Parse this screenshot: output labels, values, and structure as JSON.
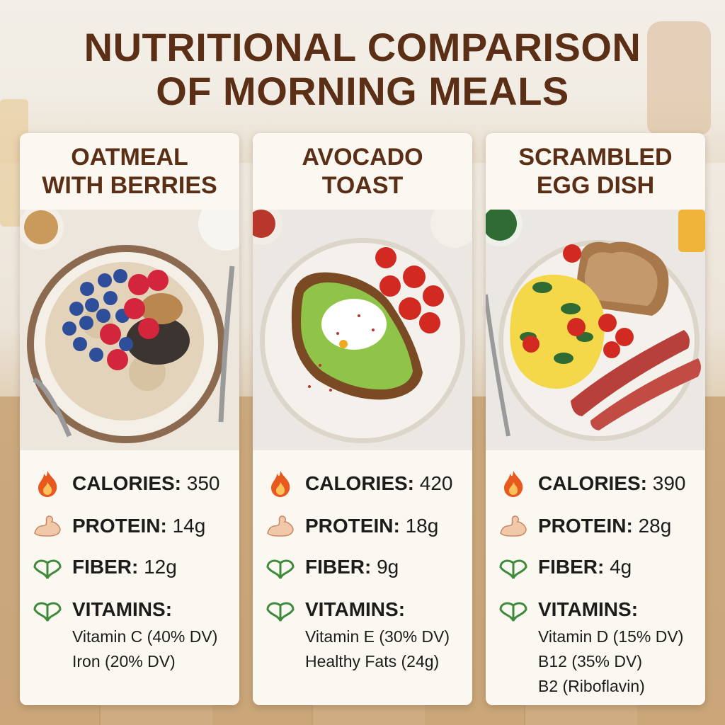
{
  "title": {
    "line1": "NUTRITIONAL COMPARISON",
    "line2": "OF MORNING MEALS"
  },
  "colors": {
    "title": "#5a2f16",
    "card_bg": "#fbf8f2",
    "flame": "#e8591f",
    "leaf": "#3f8a3a",
    "muscle": "#f1c9a8"
  },
  "icons": {
    "calories": "fire-icon",
    "protein": "flexed-arm-icon",
    "fiber": "leaf-icon",
    "vitamins": "leaf-icon"
  },
  "cards": [
    {
      "title_lines": [
        "OATMEAL",
        "WITH BERRIES"
      ],
      "photo": "oatmeal bowl with blueberries, raspberries, granola and chia seeds",
      "calories_label": "CALORIES:",
      "calories_value": "350",
      "protein_label": "PROTEIN:",
      "protein_value": "14g",
      "fiber_label": "FIBER:",
      "fiber_value": "12g",
      "vitamins_label": "VITAMINS:",
      "vitamins": [
        "Vitamin C (40% DV)",
        "Iron (20% DV)"
      ]
    },
    {
      "title_lines": [
        "AVOCADO",
        "TOAST"
      ],
      "photo": "avocado toast with poached egg and cherry tomatoes",
      "calories_label": "CALORIES:",
      "calories_value": "420",
      "protein_label": "PROTEIN:",
      "protein_value": "18g",
      "fiber_label": "FIBER:",
      "fiber_value": "9g",
      "vitamins_label": "VITAMINS:",
      "vitamins": [
        "Vitamin E (30% DV)",
        "Healthy Fats (24g)"
      ]
    },
    {
      "title_lines": [
        "SCRAMBLED",
        "EGG DISH"
      ],
      "photo": "scrambled eggs with spinach, tomatoes, toast and bacon",
      "calories_label": "CALORIES:",
      "calories_value": "390",
      "protein_label": "PROTEIN:",
      "protein_value": "28g",
      "fiber_label": "FIBER:",
      "fiber_value": "4g",
      "vitamins_label": "VITAMINS:",
      "vitamins": [
        "Vitamin D (15% DV)",
        "B12 (35% DV)",
        "B2 (Riboflavin)"
      ]
    }
  ]
}
